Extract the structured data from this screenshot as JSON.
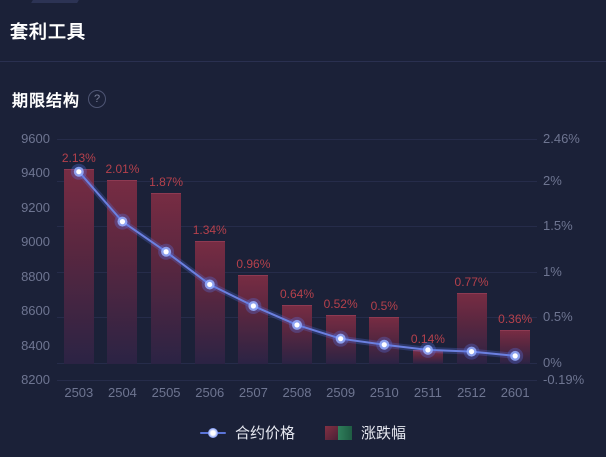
{
  "page": {
    "title": "套利工具"
  },
  "section": {
    "title": "期限结构",
    "help_glyph": "?"
  },
  "chart_data": {
    "type": "combo-line-bar",
    "categories": [
      "2503",
      "2504",
      "2505",
      "2506",
      "2507",
      "2508",
      "2509",
      "2510",
      "2511",
      "2512",
      "2601"
    ],
    "series": [
      {
        "name": "合约价格",
        "type": "line",
        "axis": "left",
        "values": [
          9410,
          9120,
          8945,
          8755,
          8630,
          8520,
          8440,
          8405,
          8375,
          8365,
          8340
        ]
      },
      {
        "name": "涨跌幅",
        "type": "bar",
        "axis": "right",
        "values": [
          2.13,
          2.01,
          1.87,
          1.34,
          0.96,
          0.64,
          0.52,
          0.5,
          0.14,
          0.77,
          0.36
        ],
        "labels": [
          "2.13%",
          "2.01%",
          "1.87%",
          "1.34%",
          "0.96%",
          "0.64%",
          "0.52%",
          "0.5%",
          "0.14%",
          "0.77%",
          "0.36%"
        ]
      }
    ],
    "left_axis": {
      "min": 8200,
      "max": 9600,
      "tick_values": [
        9600,
        9400,
        9200,
        9000,
        8800,
        8600,
        8400,
        8200
      ],
      "tick_labels": [
        "9600",
        "9400",
        "9200",
        "9000",
        "8800",
        "8600",
        "8400",
        "8200"
      ]
    },
    "right_axis": {
      "min": -0.19,
      "max": 2.46,
      "tick_values": [
        2.46,
        2,
        1.5,
        1,
        0.5,
        0,
        -0.19
      ],
      "tick_labels": [
        "2.46%",
        "2%",
        "1.5%",
        "1%",
        "0.5%",
        "0%",
        "-0.19%"
      ]
    },
    "grid": "on",
    "legend": [
      {
        "label": "合约价格",
        "marker": "line-dot"
      },
      {
        "label": "涨跌幅",
        "marker": "red-green-swatch"
      }
    ],
    "colors": {
      "background": "#1b2138",
      "line": "#6b80e0",
      "point_core": "#ffffff",
      "point_glow": "#5a78f0",
      "bar_top": "#772c43",
      "bar_bottom": "#2b2344",
      "bar_label": "#b5414c",
      "axis_text": "#6e7591",
      "grid_line": "#262c4a",
      "legend_green": "#2f7f5b"
    }
  }
}
